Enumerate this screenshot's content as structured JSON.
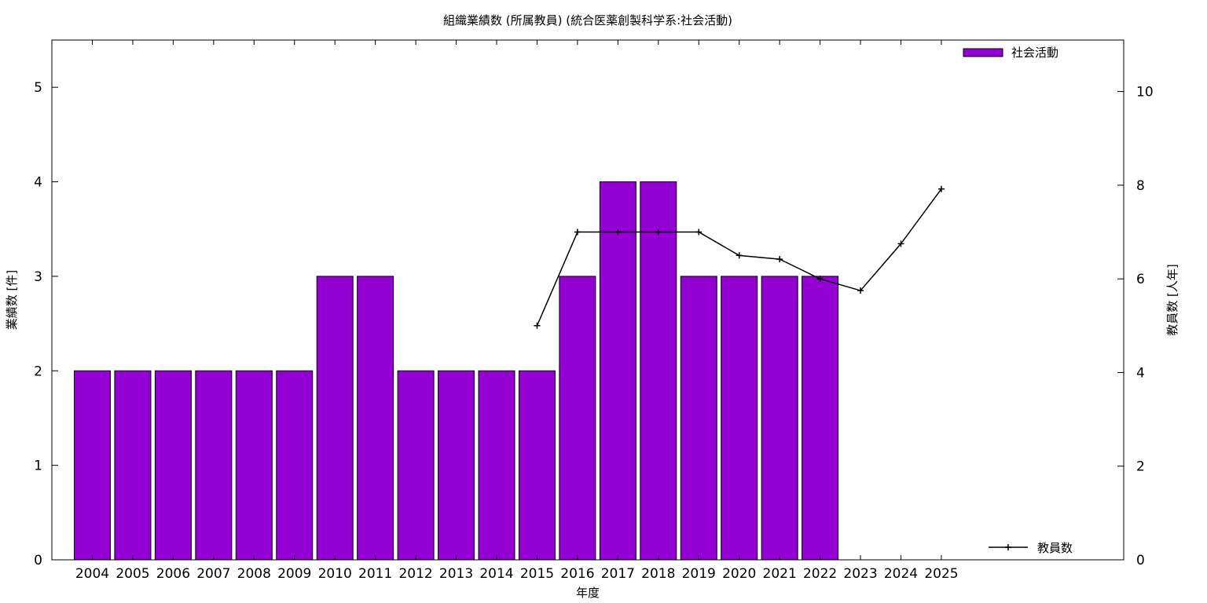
{
  "chart_data": {
    "type": "bar",
    "title": "組織業績数 (所属教員) (統合医薬創製科学系:社会活動)",
    "xlabel": "年度",
    "ylabel": "業績数 [件]",
    "y2label": "教員数 [人年]",
    "categories": [
      "2004",
      "2005",
      "2006",
      "2007",
      "2008",
      "2009",
      "2010",
      "2011",
      "2012",
      "2013",
      "2014",
      "2015",
      "2016",
      "2017",
      "2018",
      "2019",
      "2020",
      "2021",
      "2022",
      "2023",
      "2024",
      "2025"
    ],
    "ylim": [
      0,
      5.5
    ],
    "y2lim": [
      0,
      11.1
    ],
    "yticks": [
      0,
      1,
      2,
      3,
      4,
      5
    ],
    "y2ticks": [
      0,
      2,
      4,
      6,
      8,
      10
    ],
    "grid": false,
    "series": [
      {
        "name": "社会活動",
        "kind": "bar",
        "axis": "left",
        "color": "#9400d3",
        "values": [
          2,
          2,
          2,
          2,
          2,
          2,
          3,
          3,
          2,
          2,
          2,
          2,
          3,
          4,
          4,
          3,
          3,
          3,
          3,
          null,
          null,
          null
        ]
      },
      {
        "name": "教員数",
        "kind": "line",
        "axis": "right",
        "color": "#000000",
        "marker": "+",
        "values": [
          null,
          null,
          null,
          null,
          null,
          null,
          null,
          null,
          null,
          null,
          null,
          5.0,
          7.0,
          7.0,
          7.0,
          7.0,
          6.5,
          6.42,
          6.0,
          5.75,
          6.75,
          7.92
        ]
      }
    ],
    "legend": [
      {
        "label": "社会活動",
        "placement": "top-right",
        "kind": "bar"
      },
      {
        "label": "教員数",
        "placement": "bottom-right",
        "kind": "line"
      }
    ]
  }
}
